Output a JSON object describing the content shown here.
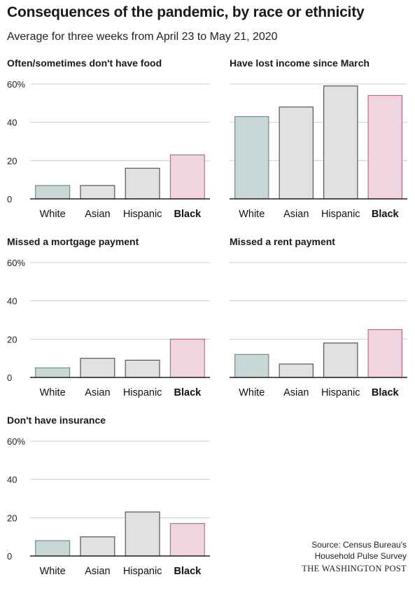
{
  "title": "Consequences of the pandemic, by race or ethnicity",
  "subtitle": "Average for three weeks from April 23 to May 21, 2020",
  "source": {
    "line1": "Source: Census Bureau's",
    "line2": "Household Pulse Survey"
  },
  "credit": "THE WASHINGTON POST",
  "colors": {
    "White": "#c9d7d6",
    "Asian": "#e1e1e1",
    "Hispanic": "#e1e1e1",
    "Black": "#eed5df",
    "stroke_White": "#6e8f8d",
    "stroke_Asian": "#555555",
    "stroke_Hispanic": "#555555",
    "stroke_Black": "#b3708f",
    "grid": "#cfcfcf",
    "axis": "#222222"
  },
  "chart_data": [
    {
      "type": "bar",
      "title": "Often/sometimes don't have food",
      "categories": [
        "White",
        "Asian",
        "Hispanic",
        "Black"
      ],
      "values": [
        7,
        7,
        16,
        23
      ],
      "yticks": [
        "0",
        "20",
        "40",
        "60%"
      ],
      "ylim": [
        0,
        60
      ],
      "grid": true,
      "bold_category": "Black"
    },
    {
      "type": "bar",
      "title": "Have lost income since March",
      "categories": [
        "White",
        "Asian",
        "Hispanic",
        "Black"
      ],
      "values": [
        43,
        48,
        59,
        54
      ],
      "yticks": [
        "0",
        "20",
        "40",
        "60%"
      ],
      "ylim": [
        0,
        60
      ],
      "grid": true,
      "bold_category": "Black",
      "show_tick_labels": false
    },
    {
      "type": "bar",
      "title": "Missed a mortgage payment",
      "categories": [
        "White",
        "Asian",
        "Hispanic",
        "Black"
      ],
      "values": [
        5,
        10,
        9,
        20
      ],
      "yticks": [
        "0",
        "20",
        "40",
        "60%"
      ],
      "ylim": [
        0,
        60
      ],
      "grid": true,
      "bold_category": "Black"
    },
    {
      "type": "bar",
      "title": "Missed a rent payment",
      "categories": [
        "White",
        "Asian",
        "Hispanic",
        "Black"
      ],
      "values": [
        12,
        7,
        18,
        25
      ],
      "yticks": [
        "0",
        "20",
        "40",
        "60%"
      ],
      "ylim": [
        0,
        60
      ],
      "grid": true,
      "bold_category": "Black",
      "show_tick_labels": false
    },
    {
      "type": "bar",
      "title": "Don't have insurance",
      "categories": [
        "White",
        "Asian",
        "Hispanic",
        "Black"
      ],
      "values": [
        8,
        10,
        23,
        17
      ],
      "yticks": [
        "0",
        "20",
        "40",
        "60%"
      ],
      "ylim": [
        0,
        60
      ],
      "grid": true,
      "bold_category": "Black"
    }
  ]
}
